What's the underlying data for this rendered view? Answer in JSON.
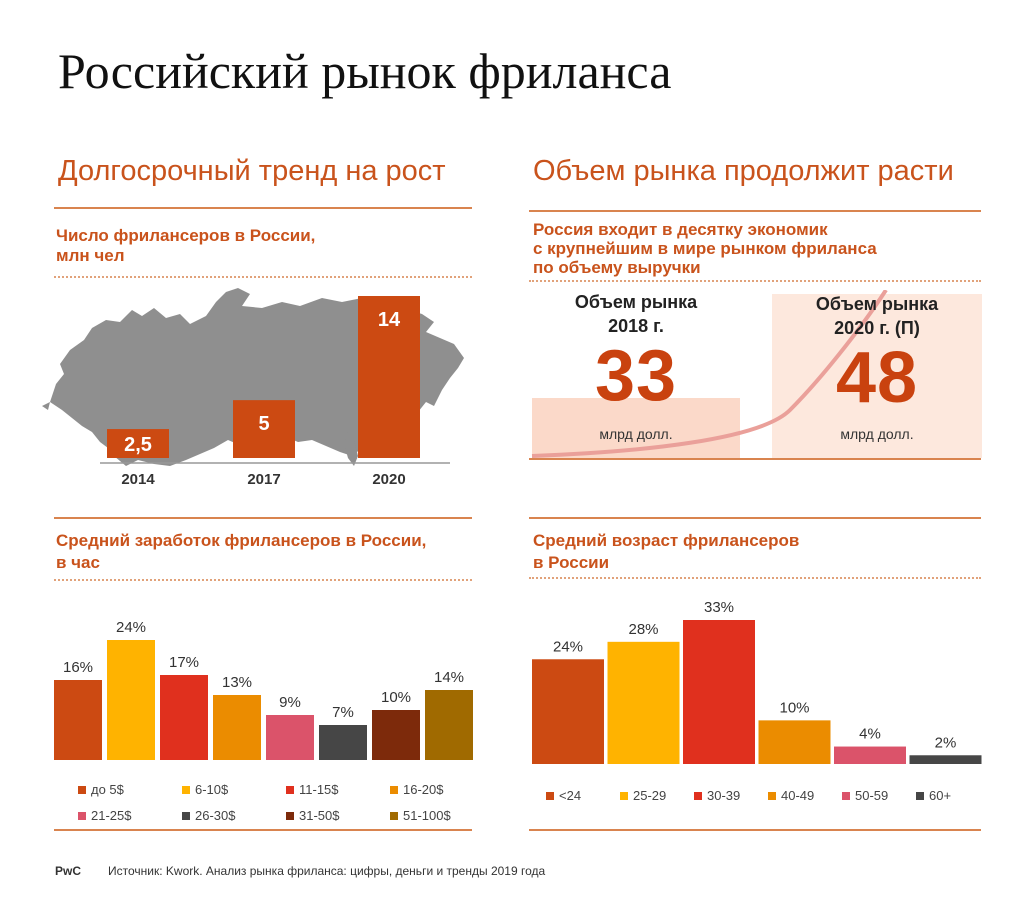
{
  "title": "Российский рынок фриланса",
  "left_section_title": "Долгосрочный тренд на рост",
  "right_section_title": "Объем рынка продолжит расти",
  "colors": {
    "accent": "#c9531c",
    "map": "#8f8f8f"
  },
  "market": {
    "subtitle_lines": [
      "Россия входит в десятку экономик",
      "с крупнейшим в мире рынком фриланса",
      "по объему выручки"
    ],
    "left_heading": "Объем рынка\n2018 г.",
    "left_value": "33",
    "left_unit": "млрд долл.",
    "right_heading": "Объем рынка\n2020 г. (П)",
    "right_value": "48",
    "right_unit": "млрд долл."
  },
  "footer": {
    "brand": "PwC",
    "source": "Источник: Kwork. Анализ рынка фриланса: цифры, деньги и тренды 2019 года"
  },
  "chart_data": [
    {
      "id": "freelancers",
      "type": "bar",
      "title": "Число фрилансеров в России, млн чел",
      "title_lines": [
        "Число фрилансеров в России,",
        "млн чел"
      ],
      "categories": [
        "2014",
        "2017",
        "2020"
      ],
      "values": [
        2.5,
        5,
        14
      ],
      "labels": [
        "2,5",
        "5",
        "14"
      ],
      "color": "#cc4a12",
      "ylim": [
        0,
        14
      ]
    },
    {
      "id": "earnings",
      "type": "bar",
      "title": "Средний заработок фрилансеров в России, в час",
      "title_lines": [
        "Средний заработок фрилансеров в России,",
        "в час"
      ],
      "categories": [
        "до 5$",
        "6-10$",
        "11-15$",
        "16-20$",
        "21-25$",
        "26-30$",
        "31-50$",
        "51-100$"
      ],
      "values": [
        16,
        24,
        17,
        13,
        9,
        7,
        10,
        14
      ],
      "labels": [
        "16%",
        "24%",
        "17%",
        "13%",
        "9%",
        "7%",
        "10%",
        "14%"
      ],
      "colors": [
        "#cc4a12",
        "#ffb300",
        "#e0301e",
        "#eb8c00",
        "#db536a",
        "#464646",
        "#7d2a0b",
        "#a06a00"
      ],
      "ylim": [
        0,
        24
      ],
      "legend_position": "bottom"
    },
    {
      "id": "age",
      "type": "bar",
      "title": "Средний возраст фрилансеров в России",
      "title_lines": [
        "Средний возраст фрилансеров",
        "в России"
      ],
      "categories": [
        "<24",
        "25-29",
        "30-39",
        "40-49",
        "50-59",
        "60+"
      ],
      "values": [
        24,
        28,
        33,
        10,
        4,
        2
      ],
      "labels": [
        "24%",
        "28%",
        "33%",
        "10%",
        "4%",
        "2%"
      ],
      "colors": [
        "#cc4a12",
        "#ffb300",
        "#e0301e",
        "#eb8c00",
        "#db536a",
        "#464646"
      ],
      "ylim": [
        0,
        33
      ],
      "legend_position": "bottom"
    }
  ]
}
